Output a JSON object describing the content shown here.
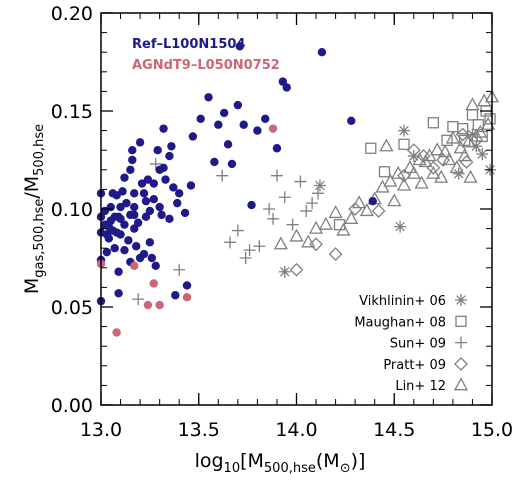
{
  "colors": {
    "ref": "#1f1a8a",
    "agn": "#cc6677",
    "obs": "#808080",
    "axis": "#000000"
  },
  "chart_data": {
    "type": "scatter",
    "title": "",
    "xlabel": "log10[M500,hse(M⊙)]",
    "ylabel": "Mgas,500,hse/M500,hse",
    "xlim": [
      13.0,
      15.0
    ],
    "ylim": [
      0.0,
      0.2
    ],
    "xticks": [
      "13.0",
      "13.5",
      "14.0",
      "14.5",
      "15.0"
    ],
    "yticks": [
      "0.00",
      "0.05",
      "0.10",
      "0.15",
      "0.20"
    ],
    "grid": false,
    "sim_legend": [
      {
        "label": "Ref–L100N1504",
        "color": "#1f1a8a"
      },
      {
        "label": "AGNdT9–L050N0752",
        "color": "#cc6677"
      }
    ],
    "obs_legend": [
      {
        "label": "Vikhlinin+ 06",
        "marker": "asterisk"
      },
      {
        "label": "Maughan+ 08",
        "marker": "square"
      },
      {
        "label": "Sun+ 09",
        "marker": "plus"
      },
      {
        "label": "Pratt+ 09",
        "marker": "diamond"
      },
      {
        "label": "Lin+ 12",
        "marker": "triangle"
      }
    ],
    "series": [
      {
        "name": "Ref–L100N1504",
        "marker": "circle-filled",
        "color": "#1f1a8a",
        "points": [
          [
            13.0,
            0.108
          ],
          [
            13.0,
            0.096
          ],
          [
            13.0,
            0.088
          ],
          [
            13.0,
            0.074
          ],
          [
            13.0,
            0.053
          ],
          [
            13.02,
            0.099
          ],
          [
            13.02,
            0.092
          ],
          [
            13.03,
            0.087
          ],
          [
            13.03,
            0.078
          ],
          [
            13.04,
            0.085
          ],
          [
            13.04,
            0.091
          ],
          [
            13.05,
            0.101
          ],
          [
            13.05,
            0.094
          ],
          [
            13.06,
            0.108
          ],
          [
            13.06,
            0.089
          ],
          [
            13.07,
            0.096
          ],
          [
            13.07,
            0.08
          ],
          [
            13.08,
            0.107
          ],
          [
            13.08,
            0.088
          ],
          [
            13.09,
            0.096
          ],
          [
            13.09,
            0.068
          ],
          [
            13.09,
            0.057
          ],
          [
            13.1,
            0.101
          ],
          [
            13.1,
            0.095
          ],
          [
            13.1,
            0.087
          ],
          [
            13.11,
            0.109
          ],
          [
            13.12,
            0.116
          ],
          [
            13.12,
            0.092
          ],
          [
            13.12,
            0.079
          ],
          [
            13.13,
            0.103
          ],
          [
            13.14,
            0.084
          ],
          [
            13.15,
            0.12
          ],
          [
            13.15,
            0.097
          ],
          [
            13.15,
            0.073
          ],
          [
            13.16,
            0.125
          ],
          [
            13.16,
            0.13
          ],
          [
            13.17,
            0.108
          ],
          [
            13.17,
            0.101
          ],
          [
            13.17,
            0.097
          ],
          [
            13.17,
            0.09
          ],
          [
            13.18,
            0.081
          ],
          [
            13.19,
            0.093
          ],
          [
            13.2,
            0.134
          ],
          [
            13.2,
            0.075
          ],
          [
            13.21,
            0.113
          ],
          [
            13.22,
            0.108
          ],
          [
            13.22,
            0.077
          ],
          [
            13.23,
            0.104
          ],
          [
            13.23,
            0.096
          ],
          [
            13.24,
            0.115
          ],
          [
            13.25,
            0.099
          ],
          [
            13.25,
            0.083
          ],
          [
            13.26,
            0.075
          ],
          [
            13.27,
            0.113
          ],
          [
            13.27,
            0.105
          ],
          [
            13.28,
            0.071
          ],
          [
            13.29,
            0.13
          ],
          [
            13.3,
            0.12
          ],
          [
            13.3,
            0.101
          ],
          [
            13.31,
            0.097
          ],
          [
            13.32,
            0.141
          ],
          [
            13.32,
            0.121
          ],
          [
            13.33,
            0.115
          ],
          [
            13.35,
            0.127
          ],
          [
            13.35,
            0.095
          ],
          [
            13.36,
            0.132
          ],
          [
            13.37,
            0.111
          ],
          [
            13.38,
            0.056
          ],
          [
            13.39,
            0.103
          ],
          [
            13.4,
            0.108
          ],
          [
            13.43,
            0.098
          ],
          [
            13.44,
            0.061
          ],
          [
            13.46,
            0.112
          ],
          [
            13.47,
            0.137
          ],
          [
            13.51,
            0.146
          ],
          [
            13.55,
            0.157
          ],
          [
            13.58,
            0.124
          ],
          [
            13.6,
            0.143
          ],
          [
            13.63,
            0.149
          ],
          [
            13.65,
            0.133
          ],
          [
            13.67,
            0.123
          ],
          [
            13.7,
            0.153
          ],
          [
            13.71,
            0.183
          ],
          [
            13.73,
            0.143
          ],
          [
            13.77,
            0.102
          ],
          [
            13.8,
            0.14
          ],
          [
            13.84,
            0.146
          ],
          [
            13.9,
            0.131
          ],
          [
            13.93,
            0.165
          ],
          [
            13.95,
            0.162
          ],
          [
            14.13,
            0.18
          ],
          [
            14.28,
            0.145
          ],
          [
            14.39,
            0.104
          ]
        ]
      },
      {
        "name": "AGNdT9–L050N0752",
        "marker": "circle-filled",
        "color": "#cc6677",
        "points": [
          [
            13.0,
            0.072
          ],
          [
            13.08,
            0.037
          ],
          [
            13.17,
            0.071
          ],
          [
            13.24,
            0.051
          ],
          [
            13.27,
            0.062
          ],
          [
            13.3,
            0.051
          ],
          [
            13.44,
            0.055
          ],
          [
            13.88,
            0.141
          ]
        ]
      },
      {
        "name": "Vikhlinin+ 06",
        "marker": "asterisk",
        "color": "#808080",
        "points": [
          [
            13.94,
            0.068
          ],
          [
            14.12,
            0.112
          ],
          [
            14.53,
            0.091
          ],
          [
            14.55,
            0.14
          ],
          [
            14.6,
            0.127
          ],
          [
            14.83,
            0.118
          ],
          [
            14.9,
            0.138
          ],
          [
            14.92,
            0.132
          ],
          [
            14.95,
            0.128
          ],
          [
            14.99,
            0.12
          ]
        ]
      },
      {
        "name": "Maughan+ 08",
        "marker": "square",
        "color": "#808080",
        "points": [
          [
            14.22,
            0.092
          ],
          [
            14.38,
            0.131
          ],
          [
            14.45,
            0.119
          ],
          [
            14.55,
            0.133
          ],
          [
            14.7,
            0.144
          ],
          [
            14.77,
            0.135
          ],
          [
            14.8,
            0.142
          ],
          [
            14.85,
            0.141
          ],
          [
            14.86,
            0.135
          ],
          [
            14.9,
            0.148
          ],
          [
            14.93,
            0.143
          ],
          [
            14.95,
            0.137
          ],
          [
            14.97,
            0.15
          ],
          [
            14.99,
            0.146
          ]
        ]
      },
      {
        "name": "Sun+ 09",
        "marker": "plus",
        "color": "#808080",
        "points": [
          [
            13.19,
            0.054
          ],
          [
            13.28,
            0.123
          ],
          [
            13.4,
            0.069
          ],
          [
            13.62,
            0.117
          ],
          [
            13.66,
            0.083
          ],
          [
            13.7,
            0.089
          ],
          [
            13.74,
            0.075
          ],
          [
            13.76,
            0.079
          ],
          [
            13.81,
            0.081
          ],
          [
            13.86,
            0.1
          ],
          [
            13.88,
            0.095
          ],
          [
            13.9,
            0.117
          ],
          [
            13.94,
            0.106
          ],
          [
            13.98,
            0.092
          ],
          [
            14.02,
            0.114
          ],
          [
            14.05,
            0.099
          ],
          [
            14.08,
            0.103
          ],
          [
            14.11,
            0.108
          ]
        ]
      },
      {
        "name": "Pratt+ 09",
        "marker": "diamond",
        "color": "#808080",
        "points": [
          [
            14.0,
            0.069
          ],
          [
            14.1,
            0.082
          ],
          [
            14.2,
            0.077
          ],
          [
            14.3,
            0.1
          ],
          [
            14.42,
            0.099
          ],
          [
            14.55,
            0.117
          ],
          [
            14.6,
            0.13
          ],
          [
            14.65,
            0.127
          ],
          [
            14.7,
            0.121
          ],
          [
            14.75,
            0.125
          ],
          [
            14.85,
            0.138
          ],
          [
            14.87,
            0.124
          ]
        ]
      },
      {
        "name": "Lin+ 12",
        "marker": "triangle",
        "color": "#808080",
        "points": [
          [
            13.92,
            0.082
          ],
          [
            14.0,
            0.086
          ],
          [
            14.06,
            0.083
          ],
          [
            14.1,
            0.09
          ],
          [
            14.15,
            0.092
          ],
          [
            14.2,
            0.098
          ],
          [
            14.24,
            0.089
          ],
          [
            14.28,
            0.095
          ],
          [
            14.32,
            0.103
          ],
          [
            14.36,
            0.099
          ],
          [
            14.4,
            0.105
          ],
          [
            14.44,
            0.111
          ],
          [
            14.46,
            0.132
          ],
          [
            14.48,
            0.114
          ],
          [
            14.52,
            0.118
          ],
          [
            14.55,
            0.112
          ],
          [
            14.58,
            0.121
          ],
          [
            14.6,
            0.118
          ],
          [
            14.63,
            0.125
          ],
          [
            14.66,
            0.124
          ],
          [
            14.68,
            0.127
          ],
          [
            14.7,
            0.118
          ],
          [
            14.72,
            0.13
          ],
          [
            14.74,
            0.116
          ],
          [
            14.76,
            0.129
          ],
          [
            14.78,
            0.125
          ],
          [
            14.8,
            0.136
          ],
          [
            14.82,
            0.121
          ],
          [
            14.84,
            0.131
          ],
          [
            14.86,
            0.127
          ],
          [
            14.88,
            0.134
          ],
          [
            14.9,
            0.153
          ],
          [
            14.92,
            0.137
          ],
          [
            14.94,
            0.139
          ],
          [
            14.96,
            0.155
          ],
          [
            14.98,
            0.143
          ],
          [
            15.0,
            0.157
          ],
          [
            14.5,
            0.104
          ],
          [
            14.64,
            0.113
          ],
          [
            14.89,
            0.116
          ]
        ]
      }
    ]
  }
}
